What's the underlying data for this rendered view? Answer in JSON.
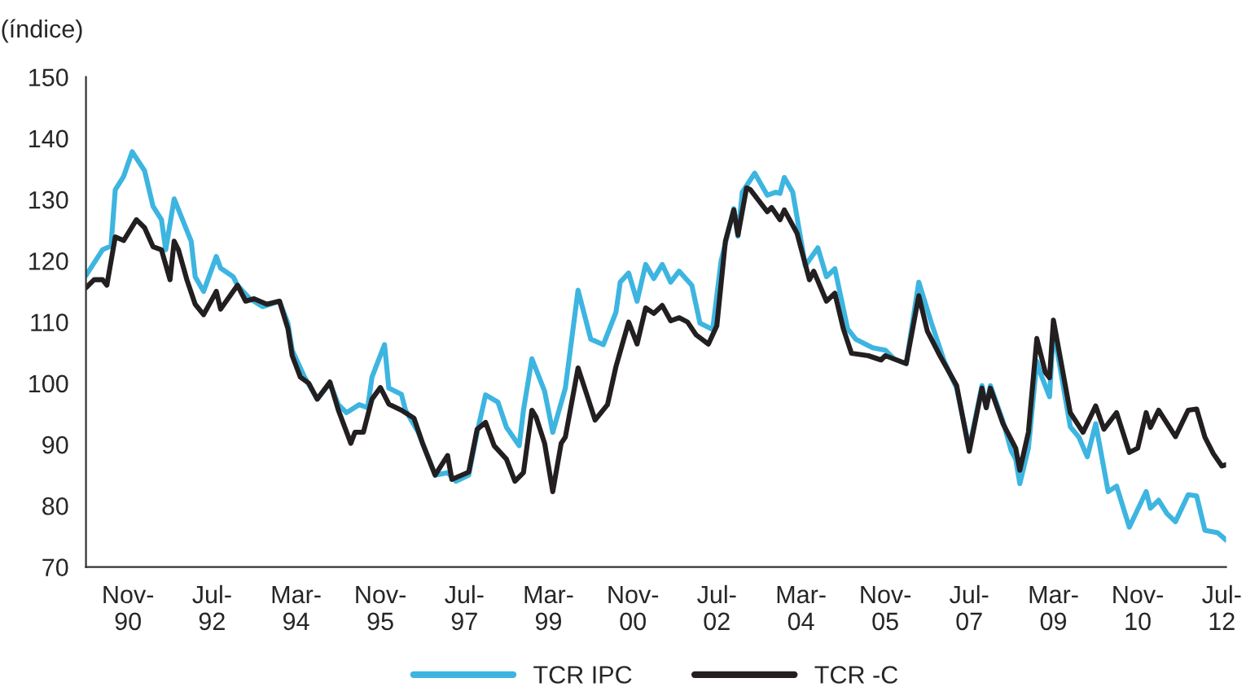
{
  "chart_data": {
    "type": "line",
    "ylabel": "(índice)",
    "ylim": [
      70,
      150
    ],
    "yticks": [
      70,
      80,
      90,
      100,
      110,
      120,
      130,
      140,
      150
    ],
    "xlim": [
      "1990-01",
      "2012-08"
    ],
    "xticks": [
      {
        "value": "1990-11",
        "label": "Nov-\n90"
      },
      {
        "value": "1992-07",
        "label": "Jul-\n92"
      },
      {
        "value": "1994-03",
        "label": "Mar-\n94"
      },
      {
        "value": "1995-11",
        "label": "Nov-\n95"
      },
      {
        "value": "1997-07",
        "label": "Jul-\n97"
      },
      {
        "value": "1999-03",
        "label": "Mar-\n99"
      },
      {
        "value": "2000-11",
        "label": "Nov-\n00"
      },
      {
        "value": "2002-07",
        "label": "Jul-\n02"
      },
      {
        "value": "2004-03",
        "label": "Mar-\n04"
      },
      {
        "value": "2005-11",
        "label": "Nov-\n05"
      },
      {
        "value": "2007-07",
        "label": "Jul-\n07"
      },
      {
        "value": "2009-03",
        "label": "Mar-\n09"
      },
      {
        "value": "2010-11",
        "label": "Nov-\n10"
      },
      {
        "value": "2012-07",
        "label": "Jul-\n12"
      }
    ],
    "grid": false,
    "legend": "bottom",
    "marker": "none",
    "line_style": "solid",
    "series": [
      {
        "name": "TCR IPC",
        "color": "#3db5e0",
        "x": [
          "1990-01",
          "1990-05",
          "1990-07",
          "1990-08",
          "1990-10",
          "1990-12",
          "1991-03",
          "1991-05",
          "1991-07",
          "1991-08",
          "1991-10",
          "1992-02",
          "1992-03",
          "1992-05",
          "1992-08",
          "1992-09",
          "1992-12",
          "1993-01",
          "1993-04",
          "1993-07",
          "1993-11",
          "1994-01",
          "1994-02",
          "1994-05",
          "1994-08",
          "1994-11",
          "1995-01",
          "1995-03",
          "1995-06",
          "1995-08",
          "1995-09",
          "1995-12",
          "1996-01",
          "1996-04",
          "1996-05",
          "1996-08",
          "1996-12",
          "1997-03",
          "1997-05",
          "1997-08",
          "1997-10",
          "1997-12",
          "1998-03",
          "1998-05",
          "1998-08",
          "1998-09",
          "1998-11",
          "1999-02",
          "1999-04",
          "1999-07",
          "1999-10",
          "2000-01",
          "2000-04",
          "2000-07",
          "2000-08",
          "2000-10",
          "2000-12",
          "2001-02",
          "2001-04",
          "2001-06",
          "2001-08",
          "2001-10",
          "2002-01",
          "2002-03",
          "2002-06",
          "2002-08",
          "2002-11",
          "2002-12",
          "2003-01",
          "2003-04",
          "2003-07",
          "2003-09",
          "2003-10",
          "2003-11",
          "2004-01",
          "2004-04",
          "2004-07",
          "2004-09",
          "2004-11",
          "2005-02",
          "2005-04",
          "2005-08",
          "2005-11",
          "2006-01",
          "2006-04",
          "2006-07",
          "2006-10",
          "2007-01",
          "2007-04",
          "2007-07",
          "2007-10",
          "2007-11",
          "2007-12",
          "2008-03",
          "2008-05",
          "2008-06",
          "2008-07",
          "2008-09",
          "2008-11",
          "2008-12",
          "2009-02",
          "2009-03",
          "2009-07",
          "2009-09",
          "2009-11",
          "2010-01",
          "2010-04",
          "2010-06",
          "2010-09",
          "2011-01",
          "2011-02",
          "2011-04",
          "2011-06",
          "2011-08",
          "2011-11",
          "2012-01",
          "2012-03",
          "2012-06",
          "2012-08"
        ],
        "values": [
          117.6,
          121.8,
          122.4,
          131.6,
          133.8,
          137.8,
          134.7,
          128.9,
          126.7,
          121.8,
          130.1,
          123.2,
          117.4,
          115,
          120.7,
          118.8,
          117.4,
          116,
          113.8,
          112.5,
          113.4,
          109.8,
          105.4,
          101,
          97.4,
          100,
          96.5,
          95.2,
          96.5,
          96,
          101,
          106.3,
          99.2,
          98.2,
          95.6,
          92,
          85,
          85.4,
          84,
          85,
          92,
          98.1,
          96.9,
          92.8,
          89.8,
          95.6,
          104,
          98.7,
          92,
          99.2,
          115.2,
          107.2,
          106.3,
          111.6,
          116.5,
          118,
          113.4,
          119.4,
          117.1,
          119.4,
          116.5,
          118.3,
          116,
          109.8,
          108.8,
          120,
          128.5,
          124,
          131.2,
          134.3,
          130.7,
          131.2,
          131,
          133.6,
          131.2,
          119.2,
          122.1,
          117.4,
          118.7,
          108.9,
          107.2,
          105.8,
          105.4,
          104,
          103.2,
          116.5,
          109.8,
          103.6,
          99.2,
          89.4,
          99.6,
          96,
          99.6,
          93.8,
          88.9,
          87.6,
          83.6,
          89.4,
          103.6,
          101.4,
          97.8,
          108.9,
          92.9,
          91.2,
          88,
          93.4,
          82.3,
          83.2,
          76.5,
          82.3,
          79.6,
          80.9,
          78.7,
          77.4,
          81.8,
          81.6,
          76,
          75.6,
          74.4
        ]
      },
      {
        "name": "TCR -C",
        "color": "#231f20",
        "x": [
          "1990-01",
          "1990-03",
          "1990-05",
          "1990-06",
          "1990-08",
          "1990-10",
          "1991-01",
          "1991-03",
          "1991-05",
          "1991-07",
          "1991-09",
          "1991-10",
          "1991-11",
          "1992-01",
          "1992-03",
          "1992-05",
          "1992-08",
          "1992-09",
          "1993-01",
          "1993-03",
          "1993-05",
          "1993-08",
          "1993-11",
          "1994-01",
          "1994-02",
          "1994-04",
          "1994-06",
          "1994-08",
          "1994-11",
          "1995-01",
          "1995-04",
          "1995-05",
          "1995-07",
          "1995-09",
          "1995-11",
          "1996-01",
          "1996-04",
          "1996-07",
          "1996-09",
          "1996-12",
          "1997-03",
          "1997-04",
          "1997-08",
          "1997-10",
          "1997-12",
          "1998-02",
          "1998-05",
          "1998-07",
          "1998-09",
          "1998-11",
          "1998-12",
          "1999-02",
          "1999-04",
          "1999-06",
          "1999-07",
          "1999-10",
          "1999-12",
          "2000-02",
          "2000-05",
          "2000-07",
          "2000-10",
          "2000-12",
          "2001-02",
          "2001-04",
          "2001-06",
          "2001-08",
          "2001-10",
          "2001-12",
          "2002-02",
          "2002-05",
          "2002-07",
          "2002-09",
          "2002-11",
          "2002-12",
          "2003-02",
          "2003-03",
          "2003-07",
          "2003-08",
          "2003-10",
          "2003-11",
          "2004-02",
          "2004-05",
          "2004-06",
          "2004-09",
          "2004-11",
          "2005-01",
          "2005-03",
          "2005-07",
          "2005-10",
          "2005-11",
          "2006-04",
          "2006-07",
          "2006-09",
          "2006-12",
          "2007-04",
          "2007-07",
          "2007-10",
          "2007-11",
          "2007-12",
          "2008-03",
          "2008-06",
          "2008-07",
          "2008-09",
          "2008-11",
          "2009-01",
          "2009-02",
          "2009-03",
          "2009-07",
          "2009-10",
          "2010-01",
          "2010-03",
          "2010-06",
          "2010-09",
          "2010-11",
          "2011-01",
          "2011-02",
          "2011-04",
          "2011-08",
          "2011-11",
          "2012-01",
          "2012-03",
          "2012-05",
          "2012-07",
          "2012-08"
        ],
        "values": [
          115.6,
          116.9,
          116.9,
          116,
          123.9,
          123.3,
          126.7,
          125.4,
          122.3,
          121.8,
          116.9,
          123.2,
          121.8,
          116.9,
          112.9,
          111.2,
          115,
          112.1,
          116,
          113.4,
          113.8,
          112.9,
          113.4,
          108.9,
          104.5,
          101,
          100,
          97.4,
          100.2,
          95.6,
          90.2,
          92,
          92,
          97.4,
          99.3,
          96.6,
          95.6,
          94.3,
          90.2,
          85,
          88.2,
          84.3,
          85.5,
          92.5,
          93.6,
          89.8,
          87.6,
          84,
          85.4,
          95.6,
          94.5,
          90.2,
          82.3,
          90.2,
          91.2,
          102.5,
          98.3,
          94,
          96.5,
          102.7,
          110,
          106.4,
          112.3,
          111.4,
          112.7,
          110.2,
          110.7,
          110,
          107.9,
          106.4,
          109.4,
          123.2,
          128.3,
          124.2,
          131.9,
          131.6,
          128,
          128.7,
          126.7,
          128.3,
          124.5,
          116.9,
          118.3,
          113.4,
          114.7,
          108.9,
          104.9,
          104.5,
          103.8,
          104.5,
          103.2,
          114.3,
          108.5,
          104.5,
          99.6,
          88.9,
          99.2,
          96,
          99.2,
          93.4,
          89.4,
          85.8,
          92,
          107.3,
          101.8,
          100.9,
          110.3,
          95.2,
          92,
          96.3,
          92.5,
          95.2,
          88.7,
          89.4,
          95.2,
          92.8,
          95.6,
          91.3,
          95.6,
          95.8,
          91.2,
          88.5,
          86.5,
          86.7
        ]
      }
    ]
  }
}
